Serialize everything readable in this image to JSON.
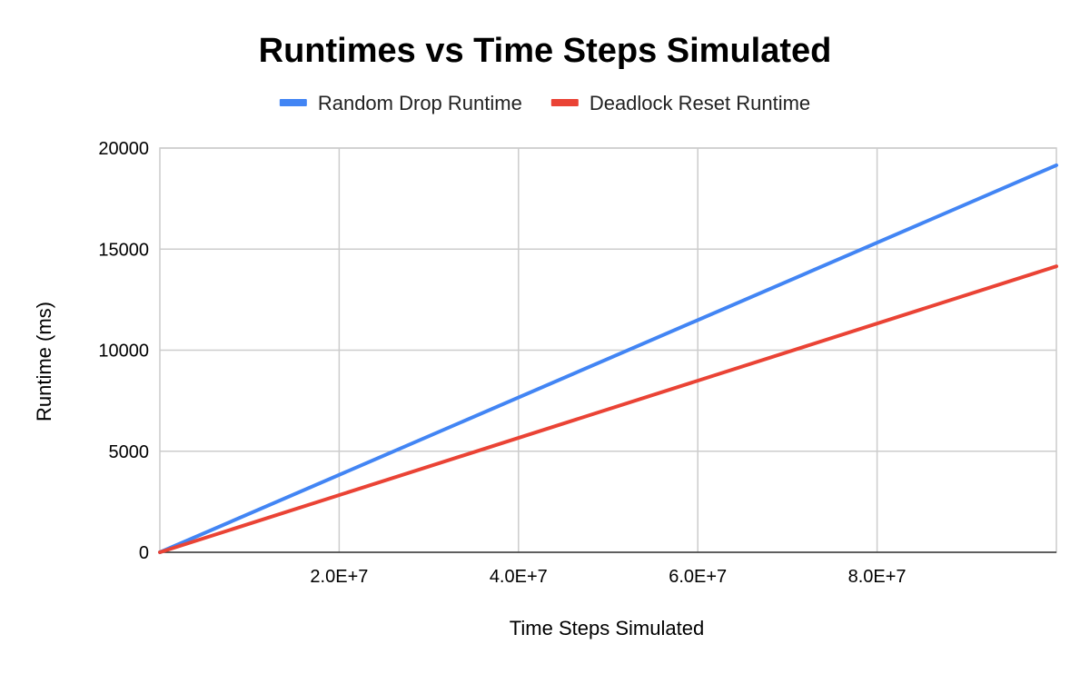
{
  "chart_data": {
    "type": "line",
    "title": "Runtimes vs Time Steps Simulated",
    "xlabel": "Time Steps Simulated",
    "ylabel": "Runtime (ms)",
    "xlim": [
      0,
      100000000
    ],
    "ylim": [
      0,
      20000
    ],
    "x_ticks": [
      20000000,
      40000000,
      60000000,
      80000000
    ],
    "x_tick_labels": [
      "2.0E+7",
      "4.0E+7",
      "6.0E+7",
      "8.0E+7"
    ],
    "y_ticks": [
      0,
      5000,
      10000,
      15000,
      20000
    ],
    "y_tick_labels": [
      "0",
      "5000",
      "10000",
      "15000",
      "20000"
    ],
    "grid": true,
    "legend_position": "top",
    "series": [
      {
        "name": "Random Drop Runtime",
        "color": "#4285F4",
        "x": [
          0,
          100000000
        ],
        "y": [
          0,
          19150
        ]
      },
      {
        "name": "Deadlock Reset Runtime",
        "color": "#EA4335",
        "x": [
          0,
          100000000
        ],
        "y": [
          0,
          14150
        ]
      }
    ]
  }
}
